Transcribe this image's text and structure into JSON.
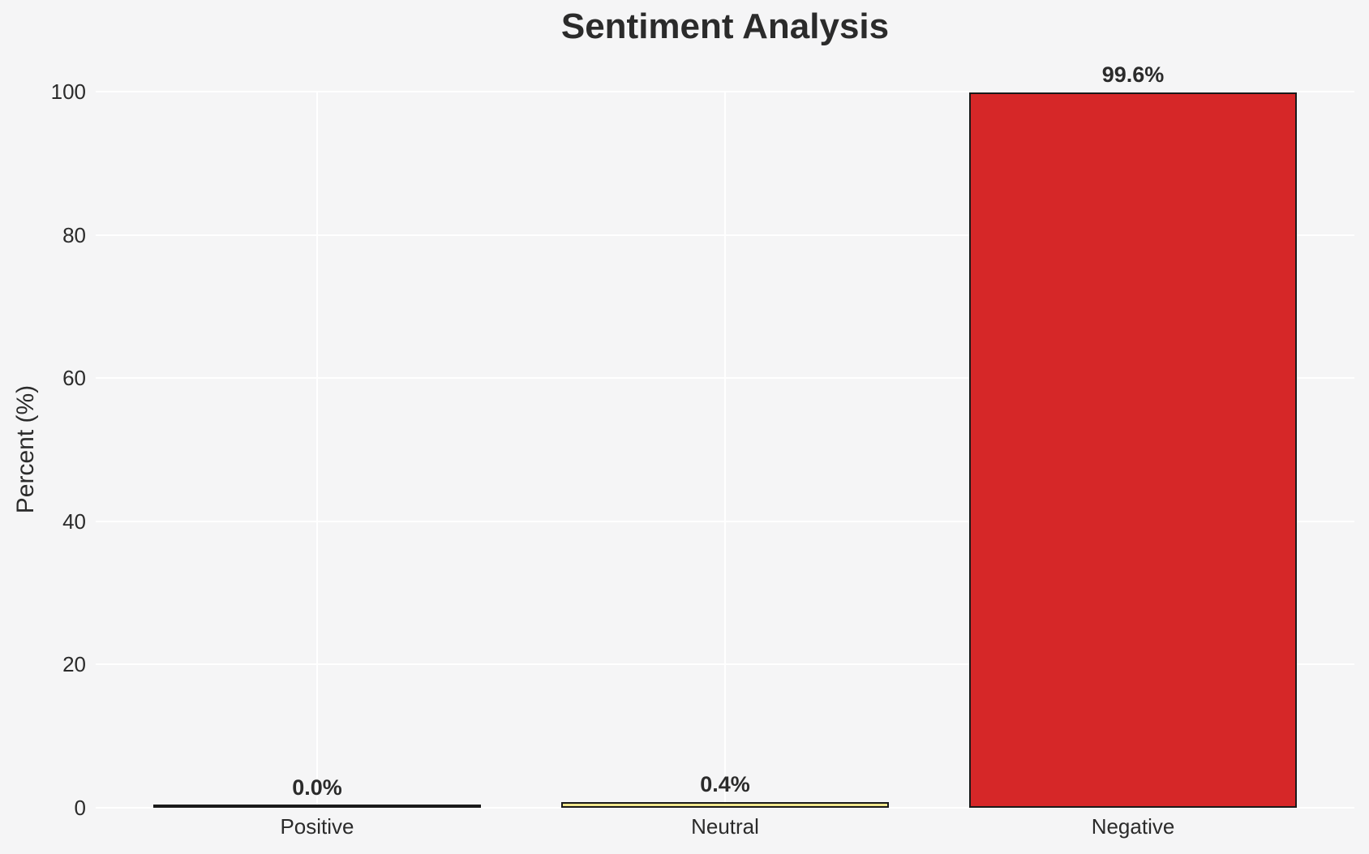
{
  "figure": {
    "background_color": "#f5f5f6",
    "grid_color": "#ffffff",
    "text_color": "#2b2b2b",
    "bar_edge_color": "#1a1a1a"
  },
  "chart_data": {
    "type": "bar",
    "title": "Sentiment Analysis",
    "xlabel": "",
    "ylabel": "Percent (%)",
    "categories": [
      "Positive",
      "Neutral",
      "Negative"
    ],
    "values": [
      0.0,
      0.4,
      99.6
    ],
    "bar_labels": [
      "0.0%",
      "0.4%",
      "99.6%"
    ],
    "bar_colors": [
      "#000000",
      "#f0e68c",
      "#d62728"
    ],
    "yticks": [
      0,
      20,
      40,
      60,
      80,
      100
    ],
    "ylim": [
      0,
      100
    ],
    "grid": true,
    "grid_style": "white gridlines on light gray background, horizontal at y ticks and vertical at category centers",
    "legend": false
  }
}
